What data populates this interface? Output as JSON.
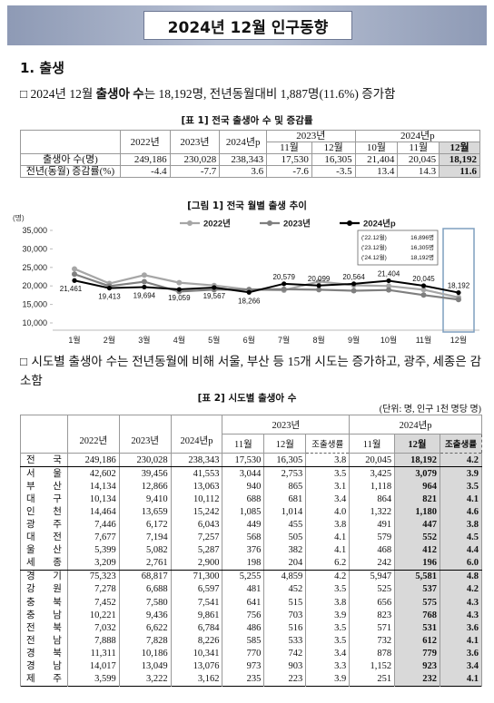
{
  "header": {
    "title": "2024년 12월 인구동향"
  },
  "section": {
    "title": "1. 출생"
  },
  "bullet1": {
    "marker": "□",
    "text_before": "2024년 12월 ",
    "emphasis": "출생아 수",
    "text_after": "는 18,192명, 전년동월대비 1,887명(11.6%) 증가함"
  },
  "table1": {
    "title": "[표 1] 전국 출생아 수 및 증감률",
    "header_row1": [
      "2022년",
      "2023년",
      "2024년p",
      "2023년",
      "2024년p"
    ],
    "header_row2": [
      "11월",
      "12월",
      "10월",
      "11월",
      "12월"
    ],
    "rows": [
      [
        "출생아 수(명)",
        "249,186",
        "230,028",
        "238,343",
        "17,530",
        "16,305",
        "21,404",
        "20,045",
        "18,192"
      ],
      [
        "전년(동월) 증감률(%)",
        "-4.4",
        "-7.7",
        "3.6",
        "-7.6",
        "-3.5",
        "13.4",
        "14.3",
        "11.6"
      ]
    ]
  },
  "figure1": {
    "title": "[그림 1] 전국 월별 출생 추이",
    "type": "line",
    "y_label": "(명)",
    "categories": [
      "1월",
      "2월",
      "3월",
      "4월",
      "5월",
      "6월",
      "7월",
      "8월",
      "9월",
      "10월",
      "11월",
      "12월"
    ],
    "series": [
      {
        "name": "2022년",
        "color": "#a6a6a6",
        "values": [
          24598,
          20654,
          22925,
          20883,
          20124,
          18988,
          18830,
          21194,
          20177,
          19973,
          18981,
          16896
        ]
      },
      {
        "name": "2023년",
        "color": "#7f7f7f",
        "values": [
          23179,
          19939,
          21138,
          18484,
          18988,
          19033,
          19102,
          18984,
          18706,
          18904,
          17530,
          16305
        ]
      },
      {
        "name": "2024년p",
        "color": "#000000",
        "values": [
          21461,
          19413,
          19694,
          19059,
          19567,
          18266,
          20579,
          20099,
          20564,
          21404,
          20045,
          18192
        ],
        "value_labels": [
          "21,461",
          "19,413",
          "19,694",
          "19,059",
          "19,567",
          "18,266",
          "20,579",
          "20,099",
          "20,564",
          "21,404",
          "20,045",
          "18,192"
        ]
      }
    ],
    "ylim": [
      10000,
      35000
    ],
    "yticks": [
      {
        "value": 10000,
        "label": "10,000"
      },
      {
        "value": 15000,
        "label": "15,000"
      },
      {
        "value": 20000,
        "label": "20,000"
      },
      {
        "value": 25000,
        "label": "25,000"
      },
      {
        "value": 30000,
        "label": "30,000"
      },
      {
        "value": 35000,
        "label": "35,000"
      }
    ],
    "annotations": [
      [
        "('22.12월)",
        "16,896명"
      ],
      [
        "('23.12월)",
        "16,305명"
      ],
      [
        "('24.12월)",
        "18,192명"
      ]
    ]
  },
  "bullet2": {
    "marker": "□",
    "text": "시도별 출생아 수는 전년동월에 비해 서울, 부산 등 15개 시도는 증가하고, 광주, 세종은 감소함"
  },
  "table2": {
    "title": "[표 2] 시도별 출생아 수",
    "unit": "(단위: 명, 인구 1천 명당 명)",
    "header_row1": [
      "2022년",
      "2023년",
      "2024년p",
      "2023년",
      "2024년p"
    ],
    "header_row2": [
      "11월",
      "12월",
      "조출생률",
      "11월",
      "12월",
      "조출생률"
    ],
    "rows": [
      [
        "전 국",
        "249,186",
        "230,028",
        "238,343",
        "17,530",
        "16,305",
        "3.8",
        "20,045",
        "18,192",
        "4.2"
      ],
      [
        "서 울",
        "42,602",
        "39,456",
        "41,553",
        "3,044",
        "2,753",
        "3.5",
        "3,425",
        "3,079",
        "3.9"
      ],
      [
        "부 산",
        "14,134",
        "12,866",
        "13,063",
        "940",
        "865",
        "3.1",
        "1,118",
        "964",
        "3.5"
      ],
      [
        "대 구",
        "10,134",
        "9,410",
        "10,112",
        "688",
        "681",
        "3.4",
        "864",
        "821",
        "4.1"
      ],
      [
        "인 천",
        "14,464",
        "13,659",
        "15,242",
        "1,085",
        "1,014",
        "4.0",
        "1,322",
        "1,180",
        "4.6"
      ],
      [
        "광 주",
        "7,446",
        "6,172",
        "6,043",
        "449",
        "455",
        "3.8",
        "491",
        "447",
        "3.8"
      ],
      [
        "대 전",
        "7,677",
        "7,194",
        "7,257",
        "568",
        "505",
        "4.1",
        "579",
        "552",
        "4.5"
      ],
      [
        "울 산",
        "5,399",
        "5,082",
        "5,287",
        "376",
        "382",
        "4.1",
        "468",
        "412",
        "4.4"
      ],
      [
        "세 종",
        "3,209",
        "2,761",
        "2,900",
        "198",
        "204",
        "6.2",
        "242",
        "196",
        "6.0"
      ],
      [
        "경 기",
        "75,323",
        "68,817",
        "71,300",
        "5,255",
        "4,859",
        "4.2",
        "5,947",
        "5,581",
        "4.8"
      ],
      [
        "강 원",
        "7,278",
        "6,688",
        "6,597",
        "481",
        "452",
        "3.5",
        "525",
        "537",
        "4.2"
      ],
      [
        "충 북",
        "7,452",
        "7,580",
        "7,541",
        "641",
        "515",
        "3.8",
        "656",
        "575",
        "4.3"
      ],
      [
        "충 남",
        "10,221",
        "9,436",
        "9,861",
        "756",
        "703",
        "3.9",
        "823",
        "768",
        "4.3"
      ],
      [
        "전 북",
        "7,032",
        "6,622",
        "6,784",
        "486",
        "516",
        "3.5",
        "571",
        "531",
        "3.6"
      ],
      [
        "전 남",
        "7,888",
        "7,828",
        "8,226",
        "585",
        "533",
        "3.5",
        "732",
        "612",
        "4.1"
      ],
      [
        "경 북",
        "11,311",
        "10,186",
        "10,341",
        "770",
        "742",
        "3.4",
        "878",
        "779",
        "3.6"
      ],
      [
        "경 남",
        "14,017",
        "13,049",
        "13,076",
        "973",
        "903",
        "3.3",
        "1,152",
        "923",
        "3.4"
      ],
      [
        "제 주",
        "3,599",
        "3,222",
        "3,162",
        "235",
        "223",
        "3.9",
        "251",
        "232",
        "4.1"
      ]
    ]
  }
}
